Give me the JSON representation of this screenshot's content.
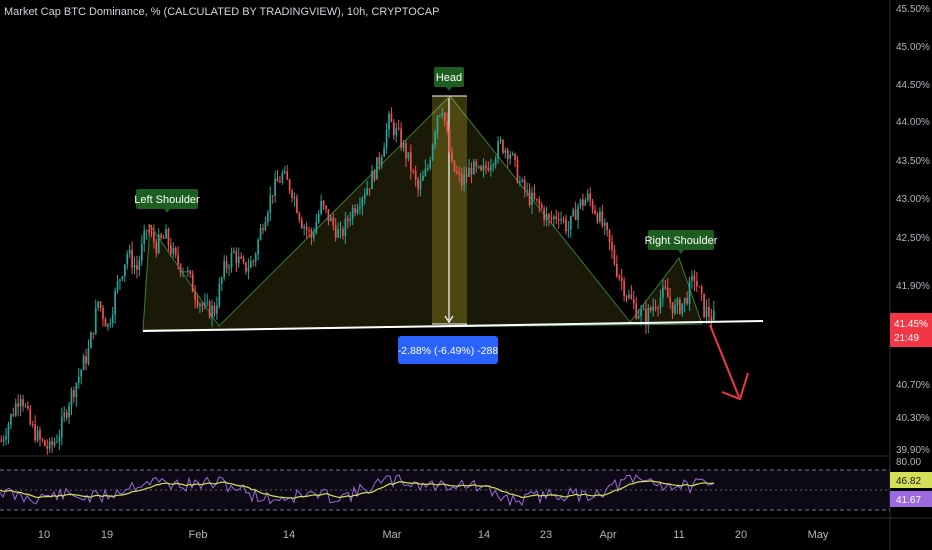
{
  "header": {
    "title": "Market Cap BTC Dominance, % (CALCULATED BY TRADINGVIEW), 10h, CRYPTOCAP"
  },
  "annotations": {
    "head": "Head",
    "left_shoulder": "Left Shoulder",
    "right_shoulder": "Right Shoulder",
    "measure": "-2.88% (-6.49%) -288"
  },
  "price_scale": {
    "ticks": [
      "45.50%",
      "45.00%",
      "44.50%",
      "44.00%",
      "43.50%",
      "43.00%",
      "42.50%",
      "41.90%",
      "40.70%",
      "40.30%",
      "39.90%"
    ],
    "last_price": "41.45%",
    "countdown": "21:49"
  },
  "rsi": {
    "ticks": [
      "80.00"
    ],
    "value_1": "46.82",
    "value_2": "41.67"
  },
  "time_axis": {
    "labels": [
      "10",
      "19",
      "Feb",
      "14",
      "Mar",
      "14",
      "23",
      "Apr",
      "11",
      "20",
      "May"
    ]
  },
  "colors": {
    "up": "#26a69a",
    "down": "#ef5350",
    "label_green": "#1b5e20",
    "measure_blue": "#2962ff",
    "rsi_line": "#9c6ade",
    "rsi_ma": "#d4e157",
    "arrow": "#f23645",
    "price_tag": "#f23645"
  },
  "chart_data": {
    "type": "candlestick",
    "title": "Market Cap BTC Dominance, % (CALCULATED BY TRADINGVIEW), 10h, CRYPTOCAP",
    "ylim": [
      39.8,
      45.6
    ],
    "x_labels": [
      "10",
      "19",
      "Feb",
      "14",
      "Mar",
      "14",
      "23",
      "Apr",
      "11",
      "20",
      "May"
    ],
    "close_path": [
      [
        0,
        40.0
      ],
      [
        4,
        40.3
      ],
      [
        8,
        40.6
      ],
      [
        12,
        40.2
      ],
      [
        16,
        40.0
      ],
      [
        20,
        39.9
      ],
      [
        24,
        40.1
      ],
      [
        28,
        40.5
      ],
      [
        32,
        40.8
      ],
      [
        36,
        41.1
      ],
      [
        40,
        41.7
      ],
      [
        44,
        41.4
      ],
      [
        48,
        41.9
      ],
      [
        52,
        42.3
      ],
      [
        56,
        42.1
      ],
      [
        60,
        42.6
      ],
      [
        64,
        42.4
      ],
      [
        68,
        42.5
      ],
      [
        72,
        42.2
      ],
      [
        76,
        42.1
      ],
      [
        80,
        41.8
      ],
      [
        84,
        41.6
      ],
      [
        88,
        41.6
      ],
      [
        92,
        42.1
      ],
      [
        96,
        42.3
      ],
      [
        100,
        42.1
      ],
      [
        104,
        42.2
      ],
      [
        108,
        42.7
      ],
      [
        112,
        43.1
      ],
      [
        116,
        43.3
      ],
      [
        120,
        43.1
      ],
      [
        124,
        42.7
      ],
      [
        128,
        42.5
      ],
      [
        132,
        42.9
      ],
      [
        136,
        42.7
      ],
      [
        140,
        42.5
      ],
      [
        144,
        42.8
      ],
      [
        148,
        43.0
      ],
      [
        152,
        43.2
      ],
      [
        156,
        43.5
      ],
      [
        160,
        44.0
      ],
      [
        164,
        43.8
      ],
      [
        168,
        43.5
      ],
      [
        172,
        43.1
      ],
      [
        176,
        43.4
      ],
      [
        180,
        44.1
      ],
      [
        182,
        44.2
      ],
      [
        186,
        43.4
      ],
      [
        190,
        43.2
      ],
      [
        194,
        43.4
      ],
      [
        198,
        43.3
      ],
      [
        202,
        43.5
      ],
      [
        206,
        43.7
      ],
      [
        210,
        43.6
      ],
      [
        214,
        43.2
      ],
      [
        218,
        43.0
      ],
      [
        222,
        42.9
      ],
      [
        226,
        42.7
      ],
      [
        230,
        42.8
      ],
      [
        234,
        42.6
      ],
      [
        238,
        42.9
      ],
      [
        242,
        43.0
      ],
      [
        246,
        42.8
      ],
      [
        250,
        42.5
      ],
      [
        254,
        42.1
      ],
      [
        258,
        41.8
      ],
      [
        262,
        41.6
      ],
      [
        266,
        41.5
      ],
      [
        270,
        41.7
      ],
      [
        274,
        41.8
      ],
      [
        278,
        41.6
      ],
      [
        282,
        41.7
      ],
      [
        286,
        42.0
      ],
      [
        290,
        41.6
      ],
      [
        294,
        41.5
      ]
    ],
    "neckline": [
      41.45,
      41.6
    ],
    "last_value": 41.45,
    "rsi": {
      "upper_band": 80.0,
      "value_1": 46.82,
      "value_2": 41.67
    }
  }
}
